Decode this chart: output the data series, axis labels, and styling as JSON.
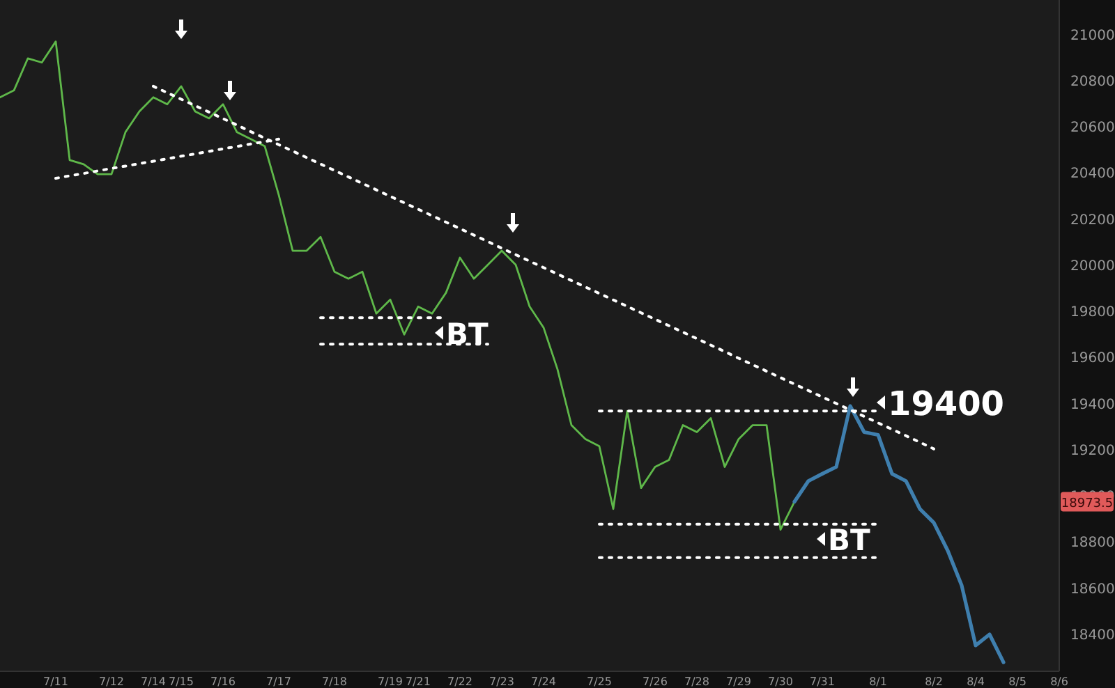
{
  "chart_data": {
    "type": "line",
    "categories": [
      null,
      null,
      null,
      null,
      "7/11",
      null,
      null,
      null,
      "7/12",
      null,
      null,
      "7/14",
      null,
      "7/15",
      null,
      null,
      "7/16",
      null,
      null,
      null,
      "7/17",
      null,
      null,
      null,
      "7/18",
      null,
      null,
      null,
      "7/19",
      null,
      "7/21",
      null,
      null,
      "7/22",
      null,
      null,
      "7/23",
      null,
      null,
      "7/24",
      null,
      null,
      null,
      "7/25",
      null,
      null,
      null,
      "7/26",
      null,
      null,
      "7/28",
      null,
      null,
      "7/29",
      null,
      null,
      "7/30",
      null,
      null,
      "7/31",
      null,
      null,
      null,
      "8/1",
      null,
      null,
      null,
      "8/2",
      null,
      null,
      "8/4",
      null,
      null,
      "8/5",
      null,
      null,
      "8/6"
    ],
    "series": [
      {
        "color": "#5fb84a",
        "values": [
          20728,
          20758,
          20897,
          20879,
          20970,
          20456,
          20438,
          20395,
          20395,
          20577,
          20667,
          20728,
          20698,
          20776,
          20667,
          20637,
          20698,
          20577,
          20547,
          20516,
          20305,
          20063,
          20063,
          20123,
          19972,
          19942,
          19972,
          19791,
          19851,
          19700,
          19821,
          19791,
          19881,
          20033,
          19942,
          20002,
          20063,
          20002,
          19821,
          19730,
          19549,
          19307,
          19247,
          19216,
          18944,
          19368,
          19035,
          19126,
          19156,
          19307,
          19277,
          19337,
          19126,
          19247,
          19307,
          19307,
          18854,
          18975,
          null,
          null,
          null,
          null,
          null,
          null,
          null,
          null,
          null,
          null,
          null,
          null,
          null,
          null,
          null,
          null,
          null,
          null,
          null
        ]
      },
      {
        "color": "#3f7fae",
        "values": [
          null,
          null,
          null,
          null,
          null,
          null,
          null,
          null,
          null,
          null,
          null,
          null,
          null,
          null,
          null,
          null,
          null,
          null,
          null,
          null,
          null,
          null,
          null,
          null,
          null,
          null,
          null,
          null,
          null,
          null,
          null,
          null,
          null,
          null,
          null,
          null,
          null,
          null,
          null,
          null,
          null,
          null,
          null,
          null,
          null,
          null,
          null,
          null,
          null,
          null,
          null,
          null,
          null,
          null,
          null,
          null,
          null,
          18975,
          19065,
          19096,
          19126,
          19390,
          19277,
          19265,
          19096,
          19065,
          18944,
          18884,
          18763,
          18612,
          18352,
          18400,
          18279,
          null,
          null,
          null,
          null
        ]
      },
      {
        "color": "#ffffff",
        "line_style": "dotted",
        "values": [
          null,
          null,
          null,
          null,
          null,
          null,
          null,
          null,
          null,
          null,
          null,
          20776,
          20748,
          20720,
          20692,
          20664,
          20636,
          20608,
          20579,
          20551,
          20523,
          20495,
          20467,
          20439,
          20411,
          20383,
          20355,
          20327,
          20299,
          20271,
          20243,
          20215,
          20187,
          20159,
          20131,
          20103,
          20074,
          20046,
          20018,
          19990,
          19962,
          19934,
          19906,
          19878,
          19850,
          19822,
          19794,
          19766,
          19738,
          19710,
          19682,
          19654,
          19626,
          19597,
          19569,
          19541,
          19513,
          19485,
          19457,
          19429,
          19401,
          19373,
          19345,
          19317,
          19289,
          19261,
          19233,
          19204,
          null,
          null,
          null,
          null,
          null,
          null,
          null,
          null,
          null
        ]
      },
      {
        "color": "#ffffff",
        "line_style": "dotted",
        "values": [
          null,
          null,
          null,
          null,
          20377,
          20388,
          20398,
          20409,
          20420,
          20430,
          20441,
          20451,
          20462,
          20473,
          20483,
          20494,
          20505,
          20515,
          20526,
          20536,
          20547,
          null,
          null,
          null,
          null,
          null,
          null,
          null,
          null,
          null,
          null,
          null,
          null,
          null,
          null,
          null,
          null,
          null,
          null,
          null,
          null,
          null,
          null,
          null,
          null,
          null,
          null,
          null,
          null,
          null,
          null,
          null,
          null,
          null,
          null,
          null,
          null,
          null,
          null,
          null,
          null,
          null,
          null,
          null,
          null,
          null,
          null,
          null,
          null,
          null,
          null,
          null,
          null,
          null,
          null,
          null,
          null
        ]
      },
      {
        "color": "#ffffff",
        "line_style": "dotted",
        "values": [
          null,
          null,
          null,
          null,
          null,
          null,
          null,
          null,
          null,
          null,
          null,
          null,
          null,
          null,
          null,
          null,
          null,
          null,
          null,
          null,
          null,
          null,
          null,
          19773,
          19773,
          19773,
          19773,
          19773,
          19773,
          19773,
          19773,
          19773,
          19773,
          null,
          null,
          null,
          null,
          null,
          null,
          null,
          null,
          null,
          null,
          null,
          null,
          null,
          null,
          null,
          null,
          null,
          null,
          null,
          null,
          null,
          null,
          null,
          null,
          null,
          null,
          null,
          null,
          null,
          null,
          null,
          null,
          null,
          null,
          null,
          null,
          null,
          null,
          null,
          null,
          null,
          null,
          null,
          null
        ]
      },
      {
        "color": "#ffffff",
        "line_style": "dotted",
        "values": [
          null,
          null,
          null,
          null,
          null,
          null,
          null,
          null,
          null,
          null,
          null,
          null,
          null,
          null,
          null,
          null,
          null,
          null,
          null,
          null,
          null,
          null,
          null,
          19658,
          19658,
          19658,
          19658,
          19658,
          19658,
          19658,
          19658,
          19658,
          19658,
          19658,
          19658,
          19658,
          null,
          null,
          null,
          null,
          null,
          null,
          null,
          null,
          null,
          null,
          null,
          null,
          null,
          null,
          null,
          null,
          null,
          null,
          null,
          null,
          null,
          null,
          null,
          null,
          null,
          null,
          null,
          null,
          null,
          null,
          null,
          null,
          null,
          null,
          null,
          null,
          null,
          null,
          null,
          null,
          null
        ]
      },
      {
        "color": "#ffffff",
        "line_style": "dotted",
        "values": [
          null,
          null,
          null,
          null,
          null,
          null,
          null,
          null,
          null,
          null,
          null,
          null,
          null,
          null,
          null,
          null,
          null,
          null,
          null,
          null,
          null,
          null,
          null,
          null,
          null,
          null,
          null,
          null,
          null,
          null,
          null,
          null,
          null,
          null,
          null,
          null,
          null,
          null,
          null,
          null,
          null,
          null,
          null,
          19368,
          19368,
          19368,
          19368,
          19368,
          19368,
          19368,
          19368,
          19368,
          19368,
          19368,
          19368,
          19368,
          19368,
          19368,
          19368,
          19368,
          19368,
          19368,
          19368,
          19368,
          null,
          null,
          null,
          null,
          null,
          null,
          null,
          null,
          null,
          null,
          null,
          null,
          null
        ]
      },
      {
        "color": "#ffffff",
        "line_style": "dotted",
        "values": [
          null,
          null,
          null,
          null,
          null,
          null,
          null,
          null,
          null,
          null,
          null,
          null,
          null,
          null,
          null,
          null,
          null,
          null,
          null,
          null,
          null,
          null,
          null,
          null,
          null,
          null,
          null,
          null,
          null,
          null,
          null,
          null,
          null,
          null,
          null,
          null,
          null,
          null,
          null,
          null,
          null,
          null,
          null,
          18878,
          18878,
          18878,
          18878,
          18878,
          18878,
          18878,
          18878,
          18878,
          18878,
          18878,
          18878,
          18878,
          18878,
          18878,
          18878,
          18878,
          18878,
          18878,
          18878,
          18878,
          null,
          null,
          null,
          null,
          null,
          null,
          null,
          null,
          null,
          null,
          null,
          null,
          null
        ]
      },
      {
        "color": "#ffffff",
        "line_style": "dotted",
        "values": [
          null,
          null,
          null,
          null,
          null,
          null,
          null,
          null,
          null,
          null,
          null,
          null,
          null,
          null,
          null,
          null,
          null,
          null,
          null,
          null,
          null,
          null,
          null,
          null,
          null,
          null,
          null,
          null,
          null,
          null,
          null,
          null,
          null,
          null,
          null,
          null,
          null,
          null,
          null,
          null,
          null,
          null,
          null,
          18733,
          18733,
          18733,
          18733,
          18733,
          18733,
          18733,
          18733,
          18733,
          18733,
          18733,
          18733,
          18733,
          18733,
          18733,
          18733,
          18733,
          18733,
          18733,
          18733,
          18733,
          null,
          null,
          null,
          null,
          null,
          null,
          null,
          null,
          null,
          null,
          null,
          null,
          null
        ]
      }
    ],
    "ylim": [
      18240,
      21150
    ],
    "yticks": [
      18400,
      18600,
      18800,
      19000,
      19200,
      19400,
      19600,
      19800,
      20000,
      20200,
      20400,
      20600,
      20800,
      21000
    ],
    "annotations": [
      "BT",
      "BT",
      "19400",
      "18973.5"
    ],
    "grid": false,
    "marker": "none",
    "line_style": "solid"
  }
}
